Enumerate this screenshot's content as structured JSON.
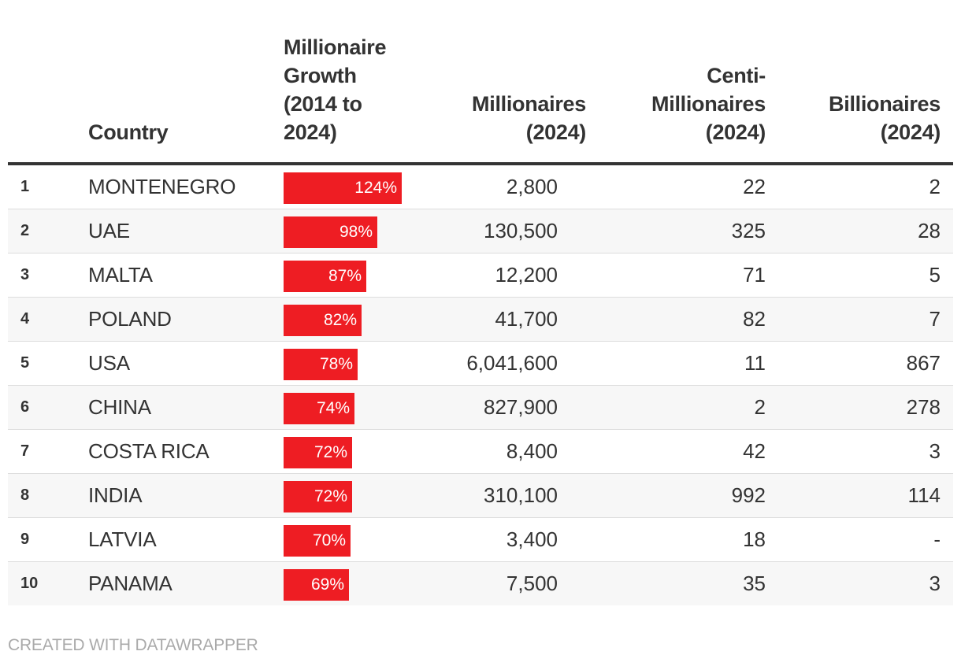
{
  "chart_data": {
    "type": "table",
    "title": "",
    "columns": [
      "",
      "Country",
      "Millionaire\nGrowth\n(2014 to\n2024)",
      "Millionaires\n(2024)",
      "Centi-\nMillionaires\n(2024)",
      "Billionaires\n(2024)"
    ],
    "growth_max": 124,
    "rows": [
      {
        "rank": "1",
        "country": "MONTENEGRO",
        "growth": 124,
        "growth_label": "124%",
        "millionaires": "2,800",
        "centi": "22",
        "billionaires": "2"
      },
      {
        "rank": "2",
        "country": "UAE",
        "growth": 98,
        "growth_label": "98%",
        "millionaires": "130,500",
        "centi": "325",
        "billionaires": "28"
      },
      {
        "rank": "3",
        "country": "MALTA",
        "growth": 87,
        "growth_label": "87%",
        "millionaires": "12,200",
        "centi": "71",
        "billionaires": "5"
      },
      {
        "rank": "4",
        "country": "POLAND",
        "growth": 82,
        "growth_label": "82%",
        "millionaires": "41,700",
        "centi": "82",
        "billionaires": "7"
      },
      {
        "rank": "5",
        "country": "USA",
        "growth": 78,
        "growth_label": "78%",
        "millionaires": "6,041,600",
        "centi": "11",
        "billionaires": "867"
      },
      {
        "rank": "6",
        "country": "CHINA",
        "growth": 74,
        "growth_label": "74%",
        "millionaires": "827,900",
        "centi": "2",
        "billionaires": "278"
      },
      {
        "rank": "7",
        "country": "COSTA RICA",
        "growth": 72,
        "growth_label": "72%",
        "millionaires": "8,400",
        "centi": "42",
        "billionaires": "3"
      },
      {
        "rank": "8",
        "country": "INDIA",
        "growth": 72,
        "growth_label": "72%",
        "millionaires": "310,100",
        "centi": "992",
        "billionaires": "114"
      },
      {
        "rank": "9",
        "country": "LATVIA",
        "growth": 70,
        "growth_label": "70%",
        "millionaires": "3,400",
        "centi": "18",
        "billionaires": "-"
      },
      {
        "rank": "10",
        "country": "PANAMA",
        "growth": 69,
        "growth_label": "69%",
        "millionaires": "7,500",
        "centi": "35",
        "billionaires": "3"
      }
    ]
  },
  "footer": {
    "credit": "CREATED WITH DATAWRAPPER"
  },
  "colors": {
    "bar": "#ee1d23",
    "text": "#333333",
    "credit": "#aaaaaa"
  }
}
